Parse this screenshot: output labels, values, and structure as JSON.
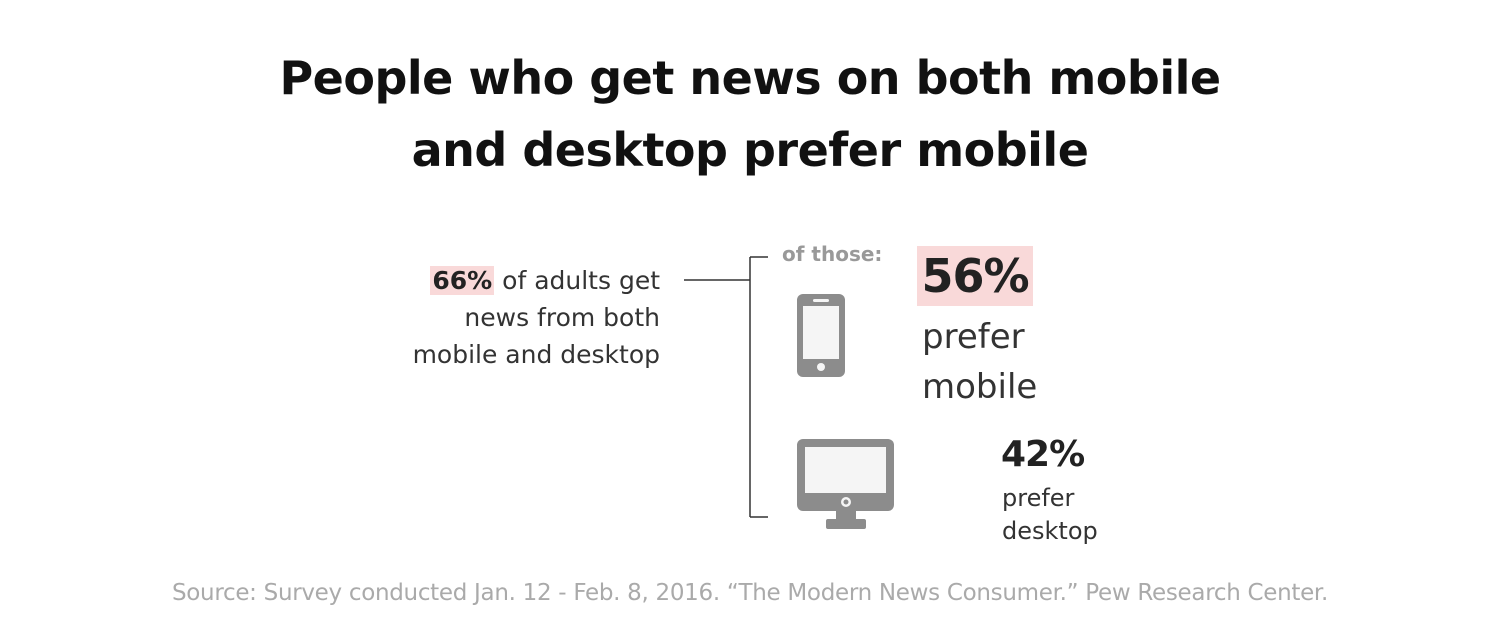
{
  "title": {
    "line1": "People who get news on both mobile",
    "line2": "and desktop prefer mobile"
  },
  "left_statement": {
    "highlight": "66%",
    "line1_rest": " of adults get",
    "line2": "news from both",
    "line3": "mobile and desktop"
  },
  "branch_label": "of those:",
  "mobile": {
    "percent": "56%",
    "label_line1": "prefer",
    "label_line2": "mobile",
    "icon": "smartphone-icon"
  },
  "desktop": {
    "percent": "42%",
    "label_line1": "prefer",
    "label_line2": "desktop",
    "icon": "desktop-monitor-icon"
  },
  "source": "Source: Survey conducted Jan. 12 - Feb. 8, 2016. “The Modern News Consumer.” Pew Research Center.",
  "colors": {
    "highlight": "#f9d9d9",
    "icon_gray": "#8c8c8c",
    "icon_screen": "#f5f5f5",
    "text_dark": "#222222",
    "source_gray": "#aaaaaa"
  },
  "chart_data": {
    "type": "bar",
    "categories": [
      "prefer mobile",
      "prefer desktop"
    ],
    "values": [
      56,
      42
    ],
    "base": {
      "label": "adults who get news from both mobile and desktop",
      "value": 66
    },
    "unit": "%"
  }
}
